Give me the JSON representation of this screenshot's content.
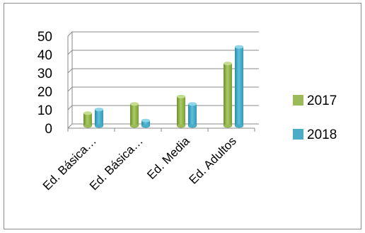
{
  "chart_data": {
    "type": "bar",
    "categories": [
      "Ed. Básica…",
      "Ed. Básica…",
      "Ed. Media",
      "Ed. Adultos"
    ],
    "series": [
      {
        "name": "2017",
        "values": [
          7,
          12,
          16,
          34
        ],
        "color": "#9bbb59"
      },
      {
        "name": "2018",
        "values": [
          9,
          3,
          12,
          43
        ],
        "color": "#4bacc6"
      }
    ],
    "small_first_bar": 0.5,
    "yticks": [
      0,
      10,
      20,
      30,
      40,
      50
    ],
    "ylim": [
      0,
      50
    ],
    "grid": true,
    "legend": "right",
    "title": "",
    "xlabel": "",
    "ylabel": ""
  }
}
